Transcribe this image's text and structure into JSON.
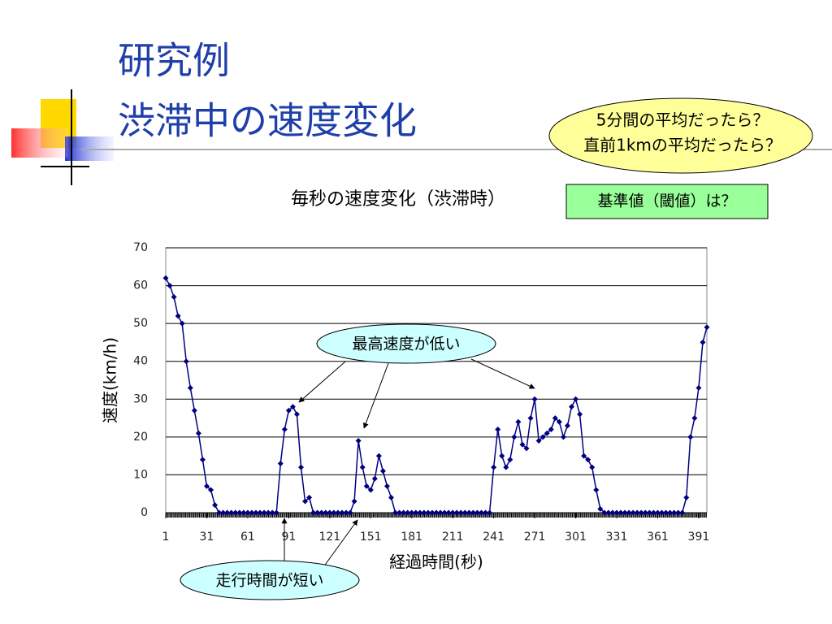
{
  "slide": {
    "title_lines": [
      "研究例",
      "渋滞中の速度変化"
    ]
  },
  "chart_data": {
    "type": "line",
    "title": "毎秒の速度変化（渋滞時）",
    "x_label": "経過時間(秒)",
    "y_label": "速度(km/h)",
    "annotations": [
      "5分間の平均だったら？",
      "直前1kmの平均だったら？",
      "基準値（閾値）は？",
      "最高速度が低い",
      "走行時間が短い"
    ],
    "xlim": [
      1,
      397
    ],
    "xticks": [
      1,
      31,
      61,
      91,
      121,
      151,
      181,
      211,
      241,
      271,
      301,
      331,
      361,
      391
    ],
    "ylim": [
      0,
      70
    ],
    "yticks": [
      0,
      10,
      20,
      30,
      40,
      50,
      60,
      70
    ],
    "grid": true,
    "x": [
      1,
      4,
      7,
      10,
      13,
      16,
      19,
      22,
      25,
      28,
      31,
      34,
      37,
      40,
      43,
      46,
      49,
      52,
      55,
      58,
      61,
      64,
      67,
      70,
      73,
      76,
      79,
      82,
      85,
      88,
      91,
      94,
      97,
      100,
      103,
      106,
      109,
      112,
      115,
      118,
      121,
      124,
      127,
      130,
      133,
      136,
      139,
      142,
      145,
      148,
      151,
      154,
      157,
      160,
      163,
      166,
      169,
      172,
      175,
      178,
      181,
      184,
      187,
      190,
      193,
      196,
      199,
      202,
      205,
      208,
      211,
      214,
      217,
      220,
      223,
      226,
      229,
      232,
      235,
      238,
      241,
      244,
      247,
      250,
      253,
      256,
      259,
      262,
      265,
      268,
      271,
      274,
      277,
      280,
      283,
      286,
      289,
      292,
      295,
      298,
      301,
      304,
      307,
      310,
      313,
      316,
      319,
      322,
      325,
      328,
      331,
      334,
      337,
      340,
      343,
      346,
      349,
      352,
      355,
      358,
      361,
      364,
      367,
      370,
      373,
      376,
      379,
      382,
      385,
      388,
      391,
      394,
      397
    ],
    "series": [
      {
        "name": "速度",
        "color": "#000080",
        "values": [
          62,
          60,
          57,
          52,
          50,
          40,
          33,
          27,
          21,
          14,
          7,
          6,
          2,
          0,
          0,
          0,
          0,
          0,
          0,
          0,
          0,
          0,
          0,
          0,
          0,
          0,
          0,
          0,
          13,
          22,
          27,
          28,
          26,
          12,
          3,
          4,
          0,
          0,
          0,
          0,
          0,
          0,
          0,
          0,
          0,
          0,
          3,
          19,
          12,
          7,
          6,
          9,
          15,
          11,
          7,
          4,
          0,
          0,
          0,
          0,
          0,
          0,
          0,
          0,
          0,
          0,
          0,
          0,
          0,
          0,
          0,
          0,
          0,
          0,
          0,
          0,
          0,
          0,
          0,
          0,
          12,
          22,
          15,
          12,
          14,
          20,
          24,
          18,
          17,
          25,
          30,
          19,
          20,
          21,
          22,
          25,
          24,
          20,
          23,
          28,
          30,
          26,
          15,
          14,
          12,
          6,
          1,
          0,
          0,
          0,
          0,
          0,
          0,
          0,
          0,
          0,
          0,
          0,
          0,
          0,
          0,
          0,
          0,
          0,
          0,
          0,
          0,
          4,
          20,
          25,
          33,
          45,
          49
        ]
      }
    ]
  }
}
